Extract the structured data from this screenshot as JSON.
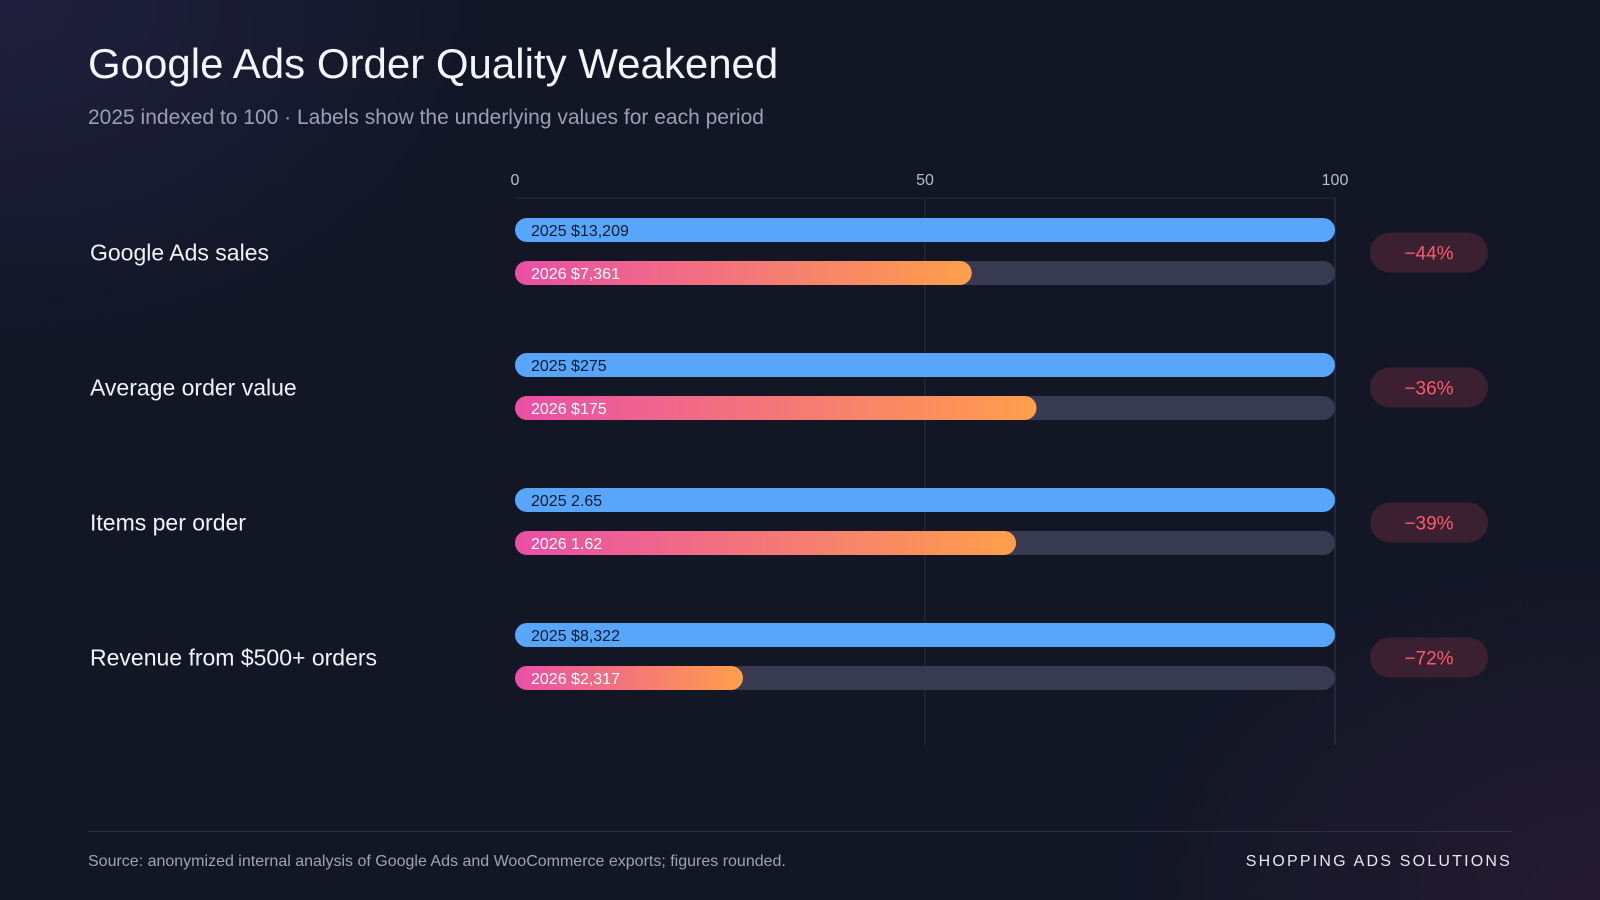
{
  "title": "Google Ads Order Quality Weakened",
  "subtitle": "2025 indexed to 100 · Labels show the underlying values for each period",
  "footer": {
    "source": "Source: anonymized internal analysis of Google Ads and WooCommerce exports; figures rounded.",
    "brand": "SHOPPING ADS SOLUTIONS"
  },
  "colors": {
    "bar_2025": "#58a6fb",
    "bar_2026_start": "#e94fa6",
    "bar_2026_end": "#ff9f4b",
    "track": "#373a50",
    "badge_text": "#ff5a6e",
    "badge_bg": "#3a2030"
  },
  "chart_data": {
    "type": "bar",
    "orientation": "horizontal",
    "xlim": [
      0,
      100
    ],
    "ticks": [
      "0",
      "50",
      "100"
    ],
    "tick_values": [
      0,
      50,
      100
    ],
    "grid": true,
    "categories": [
      {
        "label": "Google Ads sales",
        "bars": [
          {
            "label": "2025 $13,209",
            "index": 100
          },
          {
            "label": "2026 $7,361",
            "index": 55.7
          }
        ],
        "change": "−44%"
      },
      {
        "label": "Average order value",
        "bars": [
          {
            "label": "2025 $275",
            "index": 100
          },
          {
            "label": "2026 $175",
            "index": 63.6
          }
        ],
        "change": "−36%"
      },
      {
        "label": "Items per order",
        "bars": [
          {
            "label": "2025 2.65",
            "index": 100
          },
          {
            "label": "2026 1.62",
            "index": 61.1
          }
        ],
        "change": "−39%"
      },
      {
        "label": "Revenue from $500+ orders",
        "bars": [
          {
            "label": "2025 $8,322",
            "index": 100
          },
          {
            "label": "2026 $2,317",
            "index": 27.8
          }
        ],
        "change": "−72%"
      }
    ]
  }
}
